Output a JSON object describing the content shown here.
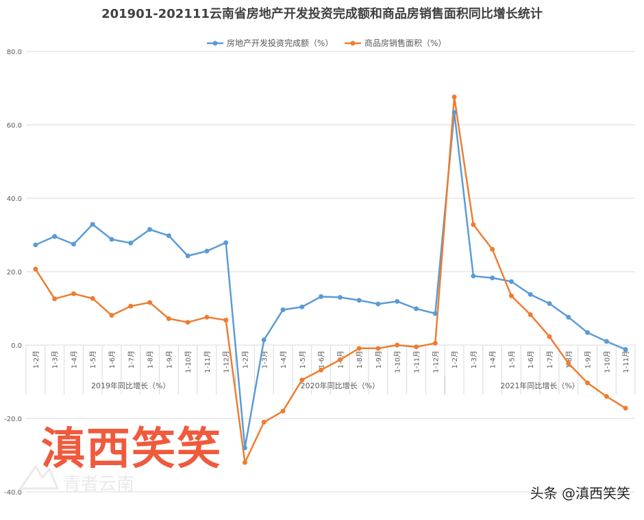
{
  "chart_data": {
    "type": "line",
    "title": "201901-202111云南省房地产开发投资完成额和商品房销售面积同比增长统计",
    "xlabel": "",
    "ylabel": "",
    "ylim": [
      -40,
      80
    ],
    "yticks": [
      80,
      60,
      40,
      20,
      0,
      -20,
      -40
    ],
    "ytick_labels": [
      "80.0",
      "60.0",
      "40.0",
      "20.0",
      "0.0",
      "-20.0",
      "-40.0"
    ],
    "grid": "horizontal",
    "legend_position": "top",
    "categories": [
      "1-2月",
      "1-3月",
      "1-4月",
      "1-5月",
      "1-6月",
      "1-7月",
      "1-8月",
      "1-9月",
      "1-10月",
      "1-11月",
      "1-12月",
      "1-2月",
      "1-3月",
      "1-4月",
      "1-5月",
      "1-6月",
      "1-7月",
      "1-8月",
      "1-9月",
      "1-10月",
      "1-11月",
      "1-12月",
      "1-2月",
      "1-3月",
      "1-4月",
      "1-5月",
      "1-6月",
      "1-7月",
      "1-8月",
      "1-9月",
      "1-10月",
      "1-11月"
    ],
    "groups": [
      {
        "label": "2019年同比增长（%）",
        "count": 11
      },
      {
        "label": "2020年同比增长（%）",
        "count": 11
      },
      {
        "label": "2021年同比增长（%）",
        "count": 10
      }
    ],
    "series": [
      {
        "name": "房地产开发投资完成额（%）",
        "color": "#5b9bd5",
        "values": [
          27.3,
          29.6,
          27.5,
          32.9,
          28.8,
          27.8,
          31.5,
          29.8,
          24.3,
          25.6,
          27.9,
          -28.0,
          1.4,
          9.6,
          10.4,
          13.2,
          13.0,
          12.2,
          11.2,
          11.9,
          9.9,
          8.6,
          63.4,
          18.8,
          18.3,
          17.3,
          13.8,
          11.3,
          7.6,
          3.4,
          1.0,
          -1.2
        ]
      },
      {
        "name": "商品房销售面积（%）",
        "color": "#ed7d31",
        "values": [
          20.7,
          12.6,
          14.0,
          12.7,
          8.1,
          10.6,
          11.6,
          7.2,
          6.2,
          7.6,
          6.8,
          -32.0,
          -21.0,
          -18.0,
          -9.5,
          -6.8,
          -4.0,
          -0.9,
          -0.9,
          0.0,
          -0.5,
          0.5,
          67.6,
          32.8,
          26.1,
          13.4,
          8.3,
          2.3,
          -5.0,
          -10.3,
          -14.0,
          -17.2
        ]
      }
    ]
  },
  "watermarks": {
    "big_text": "滇西笑笑",
    "faint_logo_text": "青者云南",
    "corner_text": "头条 @滇西笑笑"
  },
  "colors": {
    "background": "#ffffff",
    "grid": "#d9d9d9",
    "axis_text": "#595959",
    "title": "#404040",
    "watermark_fill": "#f05a3c"
  }
}
